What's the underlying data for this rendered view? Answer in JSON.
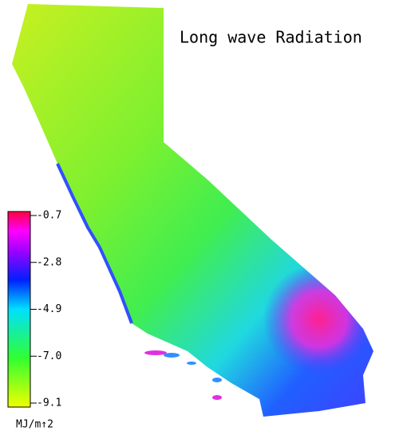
{
  "title": "Long wave Radiation",
  "colorbar": {
    "unit": "MJ/m↑2",
    "lim": [
      -9.1,
      -0.7
    ],
    "ticks": [
      -0.7,
      -2.8,
      -4.9,
      {
        "value": -7,
        "label": "-7.0"
      },
      -9.1
    ]
  }
}
